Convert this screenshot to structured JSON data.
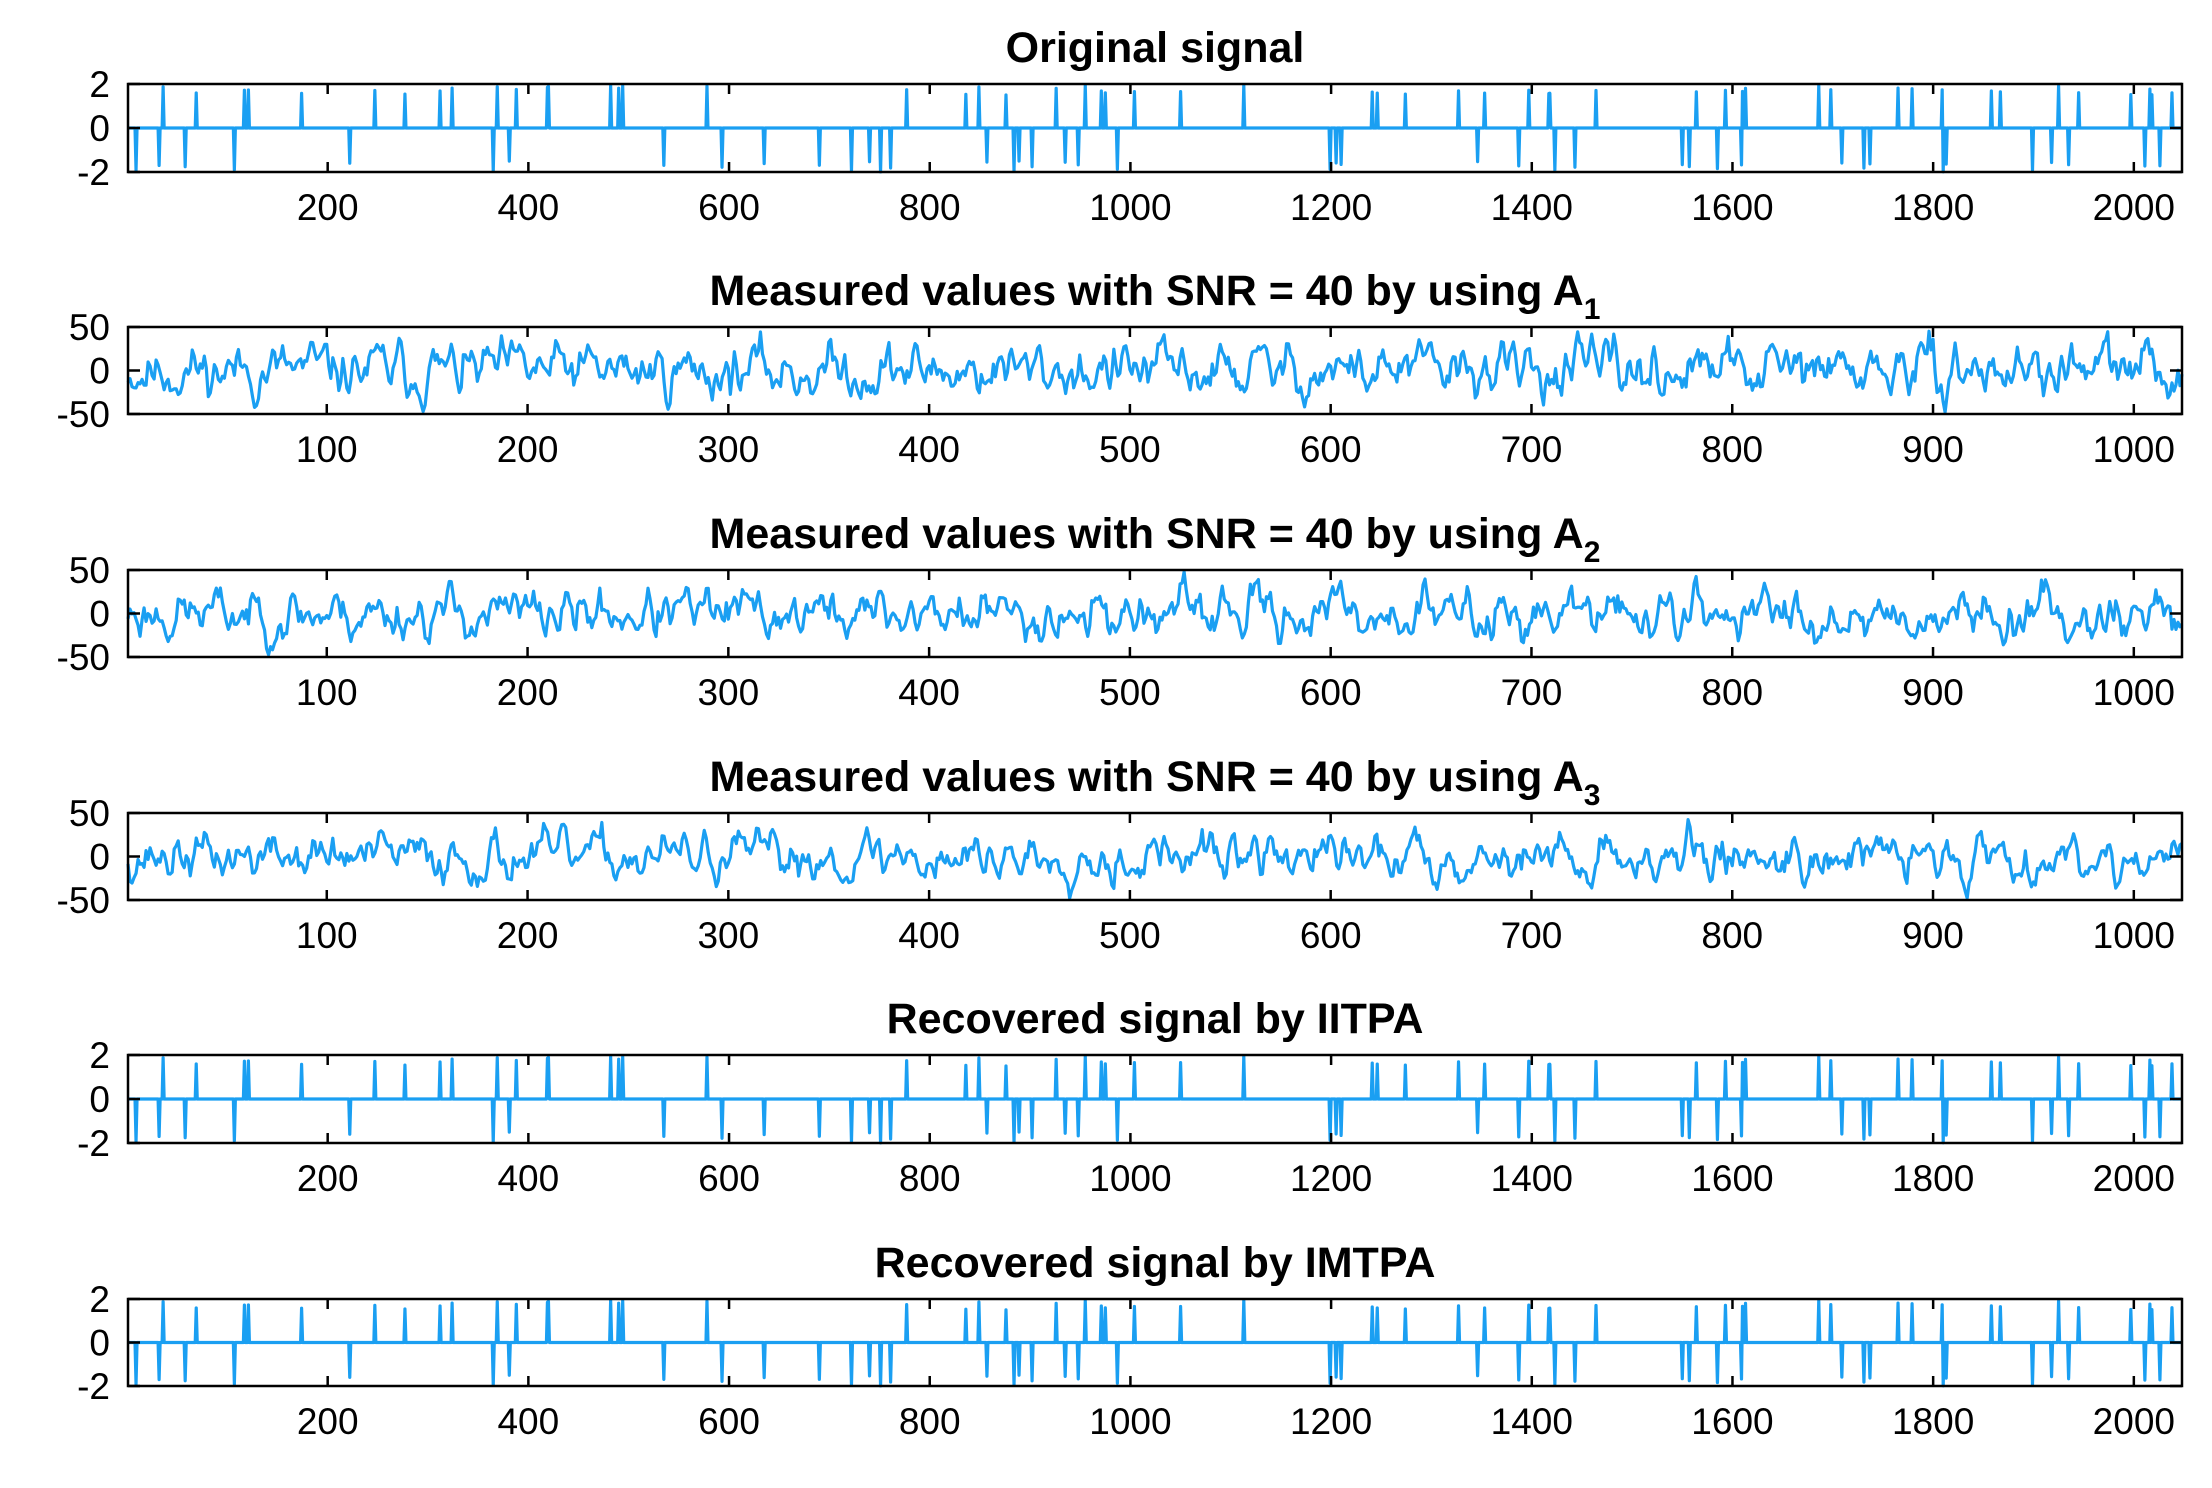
{
  "figure": {
    "series_color": "#1a9ff2",
    "axis_color": "#000000",
    "background": "#ffffff"
  },
  "chart_data": [
    {
      "type": "line",
      "id": "original",
      "title": "Original signal",
      "title_subscript": "",
      "xlim": [
        1,
        2048
      ],
      "ylim": [
        -2,
        2
      ],
      "xticks": [
        200,
        400,
        600,
        800,
        1000,
        1200,
        1400,
        1600,
        1800,
        2000
      ],
      "yticks": [
        2,
        0,
        -2
      ],
      "xtick_labels": [
        "200",
        "400",
        "600",
        "800",
        "1000",
        "1200",
        "1400",
        "1600",
        "1800",
        "2000"
      ],
      "ytick_labels": [
        "2",
        "0",
        "-2"
      ],
      "signal": {
        "kind": "sparse",
        "length": 2048,
        "nonzeros": 100,
        "seed": 7,
        "amplitude": 2
      }
    },
    {
      "type": "line",
      "id": "measured-a1",
      "title": "Measured values with SNR = 40 by using A",
      "title_subscript": "1",
      "xlim": [
        1,
        1024
      ],
      "ylim": [
        -50,
        50
      ],
      "xticks": [
        100,
        200,
        300,
        400,
        500,
        600,
        700,
        800,
        900,
        1000
      ],
      "yticks": [
        50,
        0,
        -50
      ],
      "xtick_labels": [
        "100",
        "200",
        "300",
        "400",
        "500",
        "600",
        "700",
        "800",
        "900",
        "1000"
      ],
      "ytick_labels": [
        "50",
        "0",
        "-50"
      ],
      "signal": {
        "kind": "dense",
        "length": 1024,
        "seed": 11,
        "amplitude": 48
      }
    },
    {
      "type": "line",
      "id": "measured-a2",
      "title": "Measured values with SNR = 40 by using A",
      "title_subscript": "2",
      "xlim": [
        1,
        1024
      ],
      "ylim": [
        -50,
        50
      ],
      "xticks": [
        100,
        200,
        300,
        400,
        500,
        600,
        700,
        800,
        900,
        1000
      ],
      "yticks": [
        50,
        0,
        -50
      ],
      "xtick_labels": [
        "100",
        "200",
        "300",
        "400",
        "500",
        "600",
        "700",
        "800",
        "900",
        "1000"
      ],
      "ytick_labels": [
        "50",
        "0",
        "-50"
      ],
      "signal": {
        "kind": "dense",
        "length": 1024,
        "seed": 23,
        "amplitude": 48
      }
    },
    {
      "type": "line",
      "id": "measured-a3",
      "title": "Measured values with SNR = 40 by using A",
      "title_subscript": "3",
      "xlim": [
        1,
        1024
      ],
      "ylim": [
        -50,
        50
      ],
      "xticks": [
        100,
        200,
        300,
        400,
        500,
        600,
        700,
        800,
        900,
        1000
      ],
      "yticks": [
        50,
        0,
        -50
      ],
      "xtick_labels": [
        "100",
        "200",
        "300",
        "400",
        "500",
        "600",
        "700",
        "800",
        "900",
        "1000"
      ],
      "ytick_labels": [
        "50",
        "0",
        "-50"
      ],
      "signal": {
        "kind": "dense",
        "length": 1024,
        "seed": 37,
        "amplitude": 48
      }
    },
    {
      "type": "line",
      "id": "recovered-iitpa",
      "title": "Recovered signal by IITPA",
      "title_subscript": "",
      "xlim": [
        1,
        2048
      ],
      "ylim": [
        -2,
        2
      ],
      "xticks": [
        200,
        400,
        600,
        800,
        1000,
        1200,
        1400,
        1600,
        1800,
        2000
      ],
      "yticks": [
        2,
        0,
        -2
      ],
      "xtick_labels": [
        "200",
        "400",
        "600",
        "800",
        "1000",
        "1200",
        "1400",
        "1600",
        "1800",
        "2000"
      ],
      "ytick_labels": [
        "2",
        "0",
        "-2"
      ],
      "signal": {
        "kind": "sparse",
        "length": 2048,
        "nonzeros": 100,
        "seed": 7,
        "amplitude": 2
      }
    },
    {
      "type": "line",
      "id": "recovered-imtpa",
      "title": "Recovered signal by IMTPA",
      "title_subscript": "",
      "xlim": [
        1,
        2048
      ],
      "ylim": [
        -2,
        2
      ],
      "xticks": [
        200,
        400,
        600,
        800,
        1000,
        1200,
        1400,
        1600,
        1800,
        2000
      ],
      "yticks": [
        2,
        0,
        -2
      ],
      "xtick_labels": [
        "200",
        "400",
        "600",
        "800",
        "1000",
        "1200",
        "1400",
        "1600",
        "1800",
        "2000"
      ],
      "ytick_labels": [
        "2",
        "0",
        "-2"
      ],
      "signal": {
        "kind": "sparse",
        "length": 2048,
        "nonzeros": 100,
        "seed": 7,
        "amplitude": 2
      }
    }
  ]
}
